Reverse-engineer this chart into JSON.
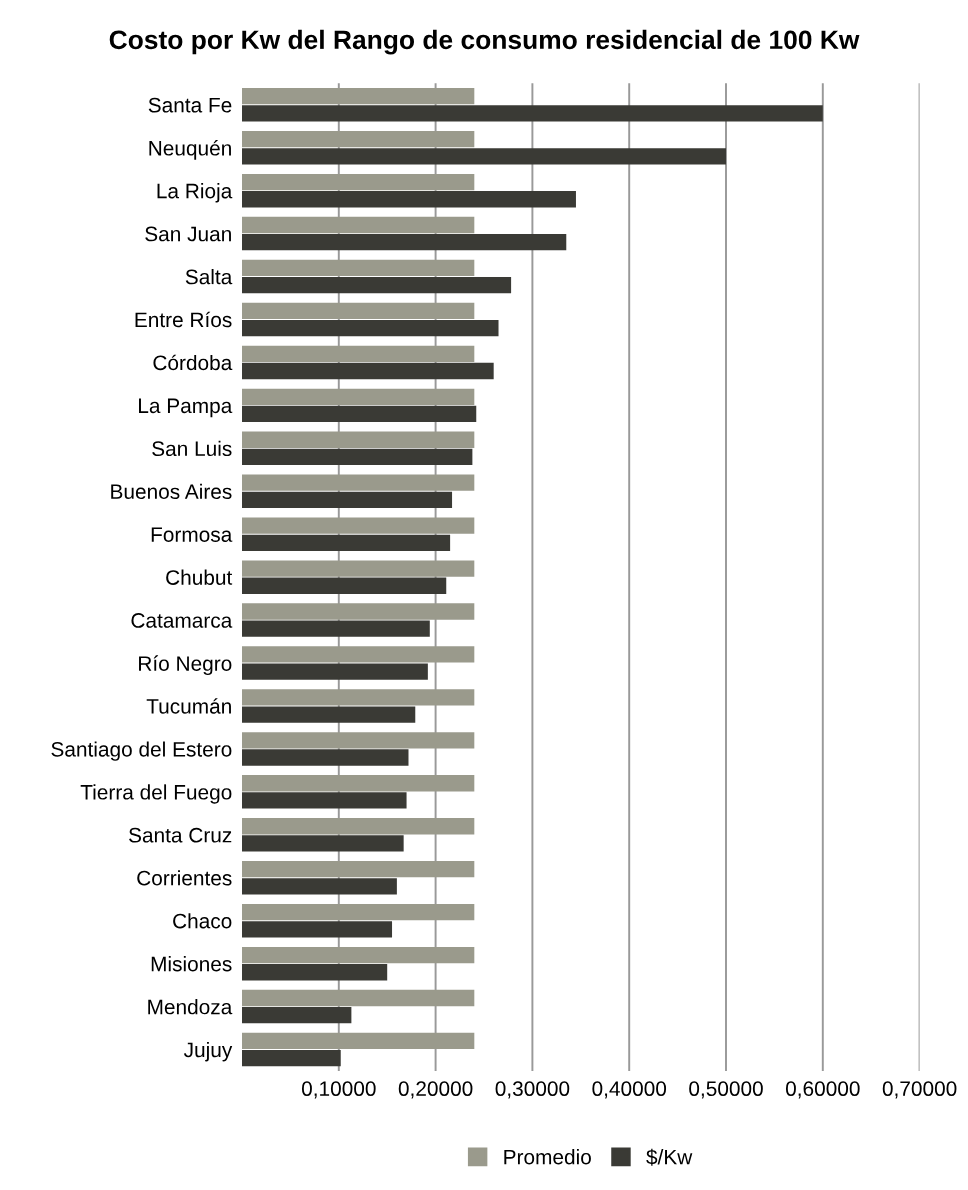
{
  "chart_data": {
    "type": "bar",
    "orientation": "horizontal",
    "title": "Costo por Kw del Rango de consumo residencial de 100 Kw",
    "categories": [
      "Santa Fe",
      "Neuquén",
      "La Rioja",
      "San Juan",
      "Salta",
      "Entre Ríos",
      "Córdoba",
      "La Pampa",
      "San Luis",
      "Buenos Aires",
      "Formosa",
      "Chubut",
      "Catamarca",
      "Río Negro",
      "Tucumán",
      "Santiago del Estero",
      "Tierra del Fuego",
      "Santa Cruz",
      "Corrientes",
      "Chaco",
      "Misiones",
      "Mendoza",
      "Jujuy"
    ],
    "series": [
      {
        "name": "Promedio",
        "color": "#9a9a8c",
        "values": [
          0.24,
          0.24,
          0.24,
          0.24,
          0.24,
          0.24,
          0.24,
          0.24,
          0.24,
          0.24,
          0.24,
          0.24,
          0.24,
          0.24,
          0.24,
          0.24,
          0.24,
          0.24,
          0.24,
          0.24,
          0.24,
          0.24,
          0.24
        ]
      },
      {
        "name": "$/Kw",
        "color": "#3a3a35",
        "values": [
          0.6,
          0.5,
          0.345,
          0.335,
          0.278,
          0.265,
          0.26,
          0.242,
          0.238,
          0.217,
          0.215,
          0.211,
          0.194,
          0.192,
          0.179,
          0.172,
          0.17,
          0.167,
          0.16,
          0.155,
          0.15,
          0.113,
          0.102
        ]
      }
    ],
    "xlim": [
      0,
      0.7
    ],
    "xticks": [
      {
        "value": 0.1,
        "label": "0,10000"
      },
      {
        "value": 0.2,
        "label": "0,20000"
      },
      {
        "value": 0.3,
        "label": "0,30000"
      },
      {
        "value": 0.4,
        "label": "0,40000"
      },
      {
        "value": 0.5,
        "label": "0,50000"
      },
      {
        "value": 0.6,
        "label": "0,60000"
      },
      {
        "value": 0.7,
        "label": "0,70000"
      }
    ],
    "grid": "x",
    "legend": "bottom"
  }
}
